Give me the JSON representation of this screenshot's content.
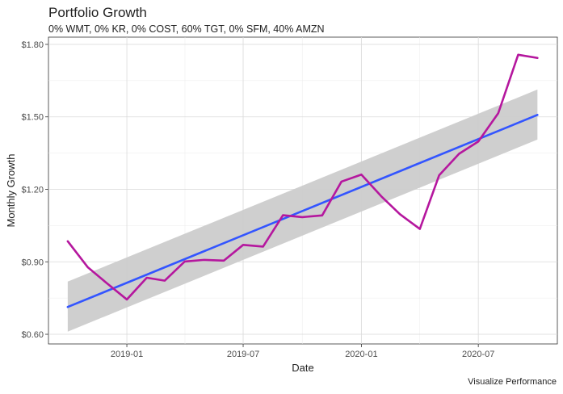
{
  "chart_data": {
    "type": "line",
    "title": "Portfolio Growth",
    "subtitle": "0% WMT, 0% KR, 0% COST, 60% TGT, 0% SFM, 40% AMZN",
    "xlabel": "Date",
    "ylabel": "Monthly Growth",
    "caption": "Visualize Performance",
    "x_tick_labels": [
      "2019-01",
      "2019-07",
      "2020-01",
      "2020-07"
    ],
    "x_ticks": [
      "2019-01-01",
      "2019-07-01",
      "2020-01-01",
      "2020-07-01"
    ],
    "y_tick_labels": [
      "$0.60",
      "$0.90",
      "$1.20",
      "$1.50",
      "$1.80"
    ],
    "y_ticks": [
      0.6,
      0.9,
      1.2,
      1.5,
      1.8
    ],
    "xlim": [
      "2018-09-01",
      "2020-11-01"
    ],
    "ylim": [
      0.56,
      1.83
    ],
    "grid": true,
    "colors": {
      "series": "#b5179e",
      "trend": "#3355ff",
      "band": "#cccccc"
    },
    "x": [
      "2018-10-01",
      "2018-11-01",
      "2018-12-01",
      "2019-01-01",
      "2019-02-01",
      "2019-03-01",
      "2019-04-01",
      "2019-05-01",
      "2019-06-01",
      "2019-07-01",
      "2019-08-01",
      "2019-09-01",
      "2019-10-01",
      "2019-11-01",
      "2019-12-01",
      "2020-01-01",
      "2020-02-01",
      "2020-03-01",
      "2020-04-01",
      "2020-05-01",
      "2020-06-01",
      "2020-07-01",
      "2020-08-01",
      "2020-09-01",
      "2020-10-01"
    ],
    "series": [
      {
        "values": [
          0.985,
          0.878,
          0.811,
          0.744,
          0.834,
          0.822,
          0.901,
          0.908,
          0.905,
          0.97,
          0.963,
          1.093,
          1.085,
          1.092,
          1.232,
          1.261,
          1.171,
          1.097,
          1.036,
          1.258,
          1.347,
          1.398,
          1.515,
          1.757,
          1.744
        ]
      }
    ],
    "trend": {
      "start": {
        "x": "2018-10-01",
        "y": 0.713,
        "lower": 0.611,
        "upper": 0.818
      },
      "end": {
        "x": "2020-10-01",
        "y": 1.508,
        "lower": 1.406,
        "upper": 1.613
      }
    }
  }
}
